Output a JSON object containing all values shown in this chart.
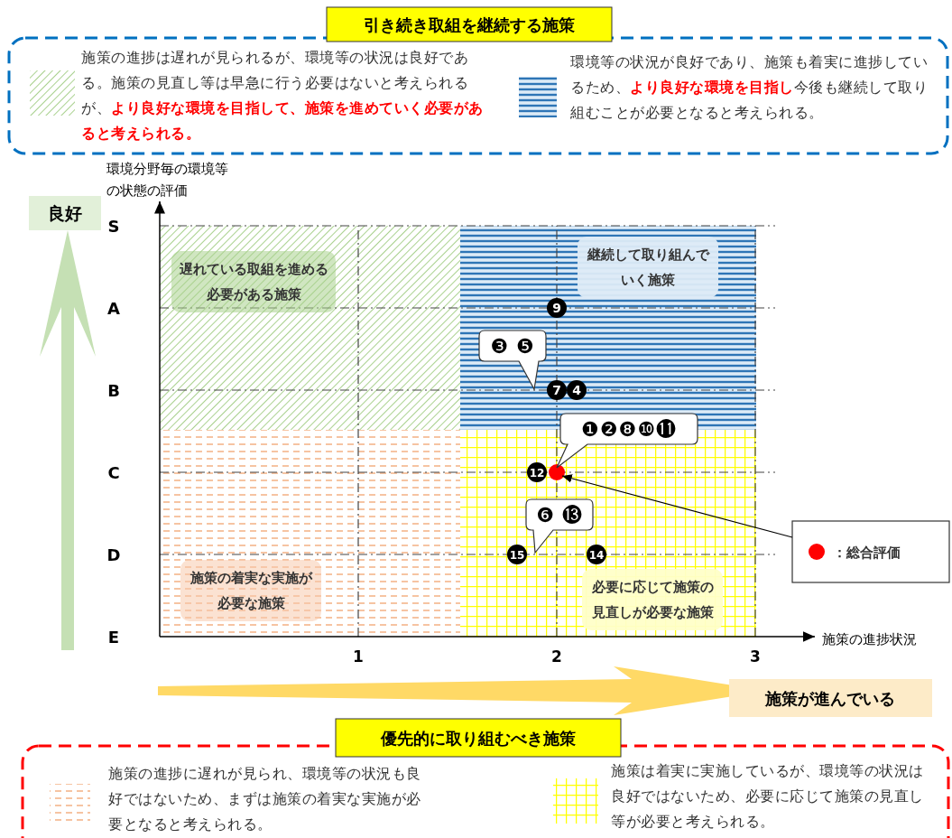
{
  "chart_data": {
    "type": "scatter",
    "orientation": "horizontal",
    "xlabel": "施策の進捗状況",
    "xlim": [
      0,
      3.3
    ],
    "xticks": [
      1,
      2,
      3
    ],
    "categories": [
      "S",
      "A",
      "B",
      "C",
      "D",
      "E"
    ],
    "grid": true,
    "marker": "circle",
    "legend": "right",
    "series": [
      {
        "color": "#000000",
        "values": [
          null,
          2,
          2,
          1.9,
          1.8,
          null
        ]
      },
      {
        "color": "#000000",
        "values": [
          null,
          null,
          2.1,
          null,
          2.2,
          null
        ]
      },
      {
        "name": "：総合評価",
        "color": "#ff0000",
        "values": [
          null,
          null,
          null,
          2,
          null,
          null
        ]
      }
    ],
    "annotations": [
      "引き続き取組を継続する施策",
      "施策の進捗は遅れが見られるが、環境等の状況は良好である。施策の見直し等は早急に行う必要はないと考えられるが、",
      "より良好な環境を目指して、施策を進めていく必要があると考えられる。",
      "環境等の状況が良好であり、施策も着実に進捗しているため、",
      "より良好な環境を目指し",
      "今後も継続して取り組むことが必要となると考えられる。",
      "優先的に取り組むべき施策",
      "施策の進捗に遅れが見られ、環境等の状況も良好ではないため、まずは施策の着実な実施が必要となると考えられる。",
      "施策は着実に実施しているが、環境等の状況は良好ではないため、必要に応じて施策の見直し等が必要と考えられる。",
      "良好",
      "施策が進んでいる",
      "❸ ❺",
      "❶❷❽❿⓫",
      "❻ ⓭",
      "環境分野毎の環境等の状態の評価",
      "遅れている取組を進める必要がある施策",
      "継続して取り組んでいく施策",
      "施策の着実な実施が必要な施策",
      "必要に応じて施策の見直しが必要な施策",
      {
        "text": "9",
        "x": 2,
        "y": "A"
      },
      {
        "text": "7",
        "x": 2,
        "y": "B"
      },
      {
        "text": "4",
        "x": 2.1,
        "y": "B"
      },
      {
        "text": "12",
        "x": 1.9,
        "y": "C"
      },
      {
        "text": "15",
        "x": 1.8,
        "y": "D"
      },
      {
        "text": "14",
        "x": 2.2,
        "y": "D"
      }
    ]
  }
}
